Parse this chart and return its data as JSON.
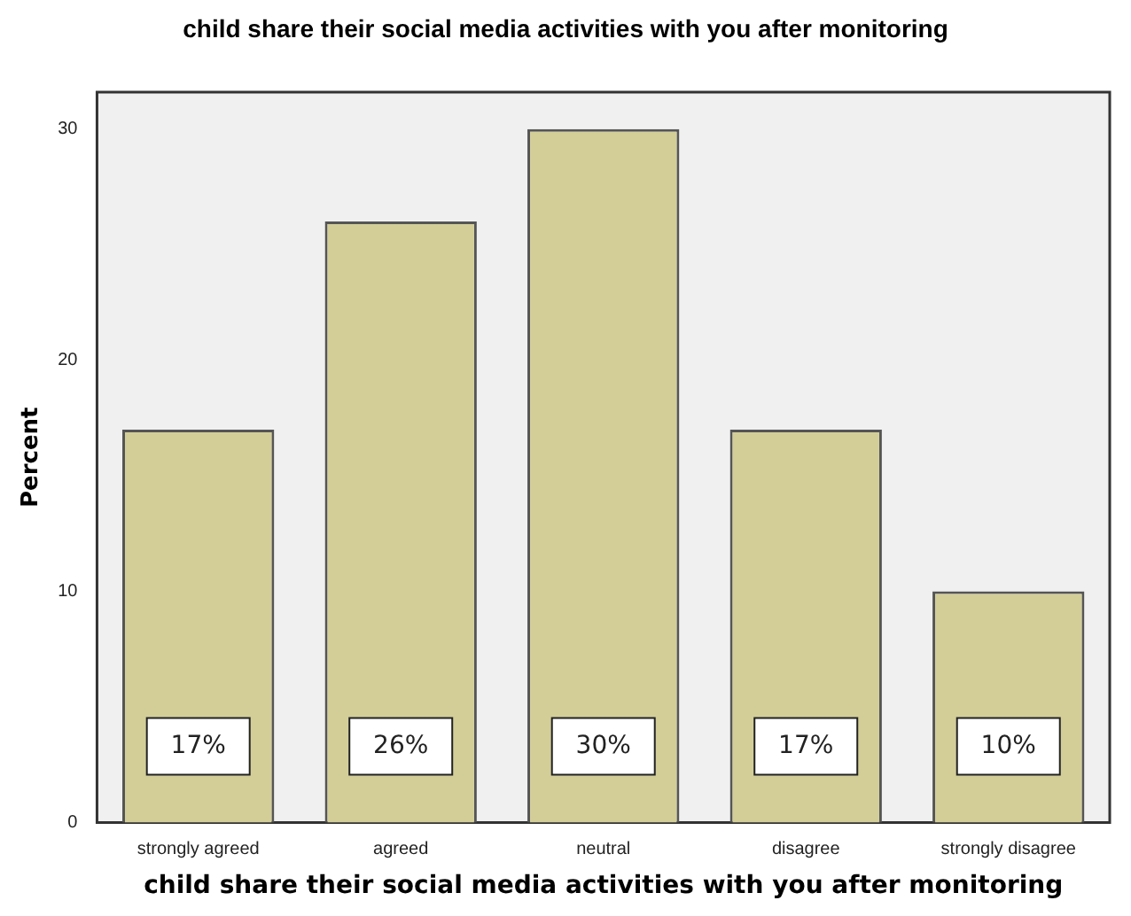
{
  "chart_data": {
    "type": "bar",
    "title": "child share their social media activities with you after monitoring",
    "xlabel": "child share their social media activities with you after monitoring",
    "ylabel": "Percent",
    "categories": [
      "strongly agreed",
      "agreed",
      "neutral",
      "disagree",
      "strongly disagree"
    ],
    "values": [
      17,
      26,
      30,
      17,
      10
    ],
    "value_labels": [
      "17%",
      "26%",
      "30%",
      "17%",
      "10%"
    ],
    "color": "#d3ce98",
    "ylim": [
      0,
      31.6
    ],
    "yticks": [
      0,
      10,
      20,
      30
    ],
    "grid": false,
    "legend": false
  }
}
